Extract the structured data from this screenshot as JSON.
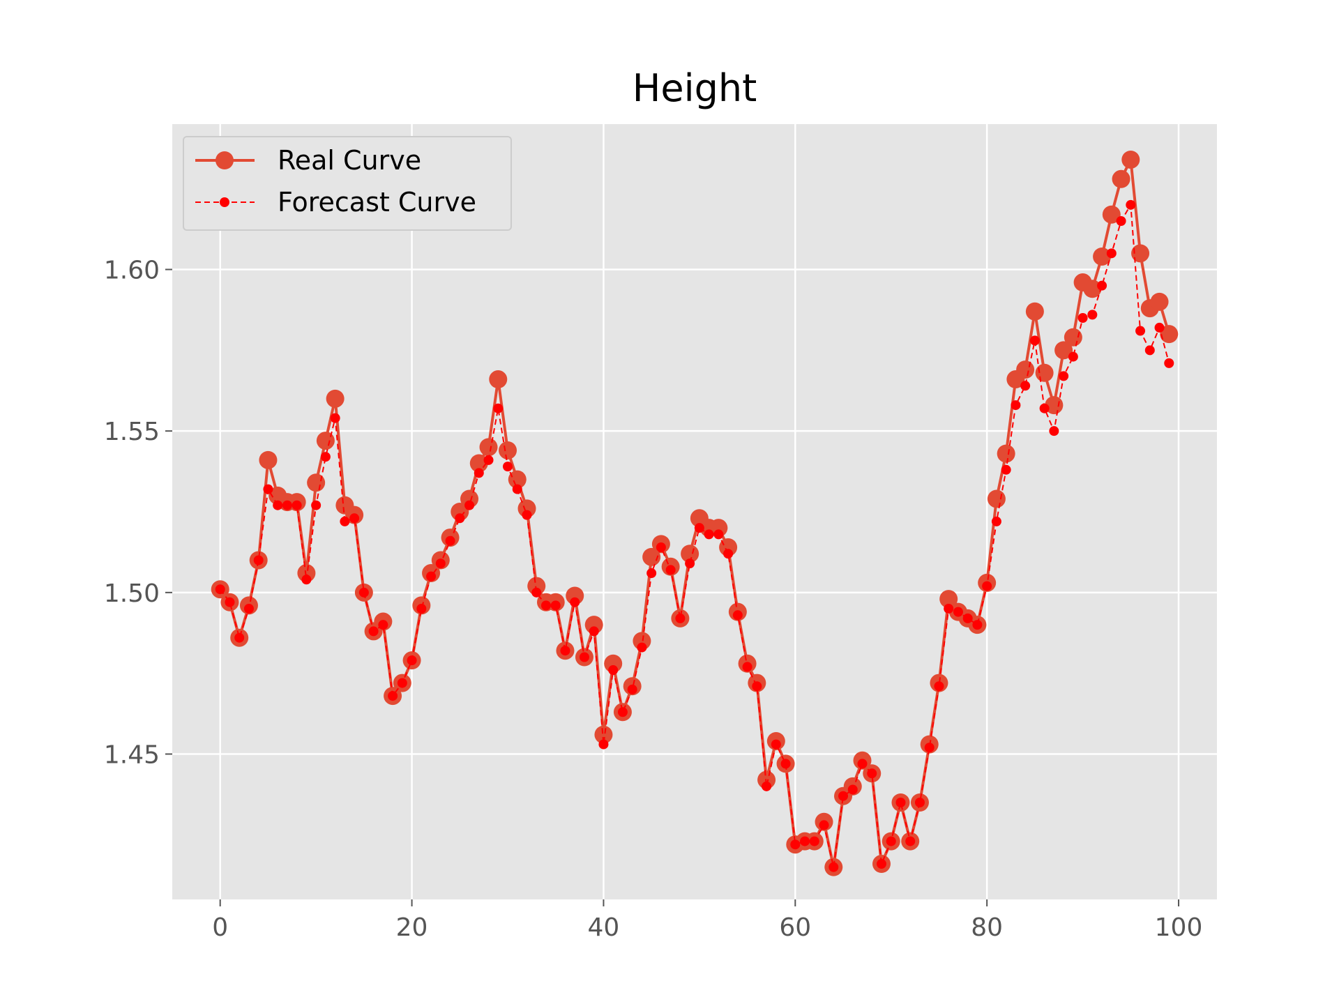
{
  "chart_data": {
    "type": "line",
    "title": "Height",
    "xlabel": "",
    "ylabel": "",
    "xlim": [
      -5,
      104
    ],
    "ylim": [
      1.405,
      1.645
    ],
    "x_ticks": [
      0,
      20,
      40,
      60,
      80,
      100
    ],
    "x_tick_labels": [
      "0",
      "20",
      "40",
      "60",
      "80",
      "100"
    ],
    "y_ticks": [
      1.45,
      1.5,
      1.55,
      1.6
    ],
    "y_tick_labels": [
      "1.45",
      "1.50",
      "1.55",
      "1.60"
    ],
    "grid": true,
    "legend_position": "top-left",
    "x": [
      0,
      1,
      2,
      3,
      4,
      5,
      6,
      7,
      8,
      9,
      10,
      11,
      12,
      13,
      14,
      15,
      16,
      17,
      18,
      19,
      20,
      21,
      22,
      23,
      24,
      25,
      26,
      27,
      28,
      29,
      30,
      31,
      32,
      33,
      34,
      35,
      36,
      37,
      38,
      39,
      40,
      41,
      42,
      43,
      44,
      45,
      46,
      47,
      48,
      49,
      50,
      51,
      52,
      53,
      54,
      55,
      56,
      57,
      58,
      59,
      60,
      61,
      62,
      63,
      64,
      65,
      66,
      67,
      68,
      69,
      70,
      71,
      72,
      73,
      74,
      75,
      76,
      77,
      78,
      79,
      80,
      81,
      82,
      83,
      84,
      85,
      86,
      87,
      88,
      89,
      90,
      91,
      92,
      93,
      94,
      95,
      96,
      97,
      98,
      99
    ],
    "series": [
      {
        "name": "Real Curve",
        "color": "#e24a33",
        "style": "solid",
        "values": [
          1.501,
          1.497,
          1.486,
          1.496,
          1.51,
          1.541,
          1.53,
          1.528,
          1.528,
          1.506,
          1.534,
          1.547,
          1.56,
          1.527,
          1.524,
          1.5,
          1.488,
          1.491,
          1.468,
          1.472,
          1.479,
          1.496,
          1.506,
          1.51,
          1.517,
          1.525,
          1.529,
          1.54,
          1.545,
          1.566,
          1.544,
          1.535,
          1.526,
          1.502,
          1.497,
          1.497,
          1.482,
          1.499,
          1.48,
          1.49,
          1.456,
          1.478,
          1.463,
          1.471,
          1.485,
          1.511,
          1.515,
          1.508,
          1.492,
          1.512,
          1.523,
          1.52,
          1.52,
          1.514,
          1.494,
          1.478,
          1.472,
          1.442,
          1.454,
          1.447,
          1.422,
          1.423,
          1.423,
          1.429,
          1.415,
          1.437,
          1.44,
          1.448,
          1.444,
          1.416,
          1.423,
          1.435,
          1.423,
          1.435,
          1.453,
          1.472,
          1.498,
          1.494,
          1.492,
          1.49,
          1.503,
          1.529,
          1.543,
          1.566,
          1.569,
          1.587,
          1.568,
          1.558,
          1.575,
          1.579,
          1.596,
          1.594,
          1.604,
          1.617,
          1.628,
          1.634,
          1.605,
          1.588,
          1.59,
          1.58
        ]
      },
      {
        "name": "Forecast Curve",
        "color": "#ff0000",
        "style": "dashed",
        "values": [
          1.501,
          1.497,
          1.486,
          1.495,
          1.51,
          1.532,
          1.527,
          1.527,
          1.527,
          1.504,
          1.527,
          1.542,
          1.554,
          1.522,
          1.523,
          1.5,
          1.488,
          1.49,
          1.468,
          1.472,
          1.479,
          1.495,
          1.505,
          1.509,
          1.516,
          1.523,
          1.527,
          1.537,
          1.541,
          1.557,
          1.539,
          1.532,
          1.524,
          1.5,
          1.496,
          1.496,
          1.482,
          1.497,
          1.48,
          1.488,
          1.453,
          1.476,
          1.463,
          1.47,
          1.483,
          1.506,
          1.514,
          1.507,
          1.492,
          1.509,
          1.52,
          1.518,
          1.518,
          1.512,
          1.493,
          1.477,
          1.471,
          1.44,
          1.453,
          1.447,
          1.422,
          1.423,
          1.423,
          1.428,
          1.415,
          1.437,
          1.439,
          1.447,
          1.444,
          1.416,
          1.423,
          1.435,
          1.423,
          1.435,
          1.452,
          1.471,
          1.495,
          1.494,
          1.492,
          1.49,
          1.502,
          1.522,
          1.538,
          1.558,
          1.564,
          1.578,
          1.557,
          1.55,
          1.567,
          1.573,
          1.585,
          1.586,
          1.595,
          1.605,
          1.615,
          1.62,
          1.581,
          1.575,
          1.582,
          1.571
        ]
      }
    ]
  }
}
